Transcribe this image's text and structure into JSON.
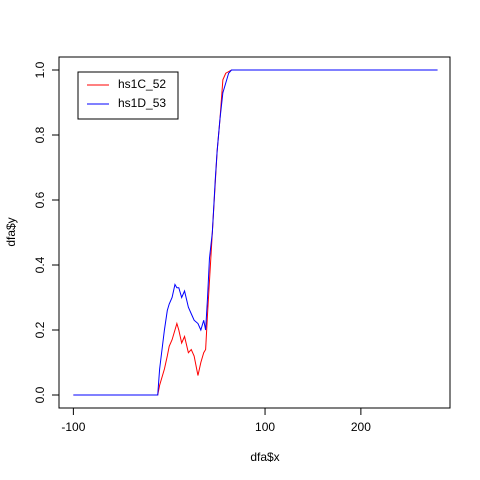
{
  "chart_data": {
    "type": "line",
    "xlabel": "dfa$x",
    "ylabel": "dfa$y",
    "x": [
      -100,
      -12,
      -10,
      -5,
      -2,
      0,
      3,
      6,
      8,
      10,
      13,
      16,
      20,
      23,
      26,
      30,
      33,
      36,
      38,
      40,
      42,
      45,
      48,
      50,
      53,
      56,
      59,
      62,
      65,
      100,
      150,
      200,
      250,
      280
    ],
    "series": [
      {
        "name": "hs1C_52",
        "color": "#ff0000",
        "values": [
          0,
          0,
          0.03,
          0.08,
          0.12,
          0.15,
          0.17,
          0.2,
          0.22,
          0.2,
          0.16,
          0.18,
          0.13,
          0.14,
          0.12,
          0.06,
          0.1,
          0.13,
          0.14,
          0.25,
          0.35,
          0.5,
          0.65,
          0.75,
          0.85,
          0.97,
          0.99,
          0.995,
          1,
          1,
          1,
          1,
          1,
          1
        ]
      },
      {
        "name": "hs1D_53",
        "color": "#0000ff",
        "values": [
          0,
          0,
          0.08,
          0.2,
          0.26,
          0.28,
          0.3,
          0.34,
          0.33,
          0.33,
          0.3,
          0.32,
          0.27,
          0.25,
          0.23,
          0.22,
          0.2,
          0.23,
          0.2,
          0.3,
          0.42,
          0.5,
          0.66,
          0.75,
          0.85,
          0.93,
          0.96,
          0.99,
          1,
          1,
          1,
          1,
          1,
          1
        ]
      }
    ],
    "xlim": [
      -115,
      293
    ],
    "ylim": [
      -0.04,
      1.04
    ],
    "xticks": [
      -100,
      100,
      200
    ],
    "yticks": [
      {
        "value": 0,
        "label": "0.0"
      },
      0.2,
      0.4,
      0.6,
      0.8,
      {
        "value": 1,
        "label": "1.0"
      }
    ],
    "legend": "top-left"
  }
}
